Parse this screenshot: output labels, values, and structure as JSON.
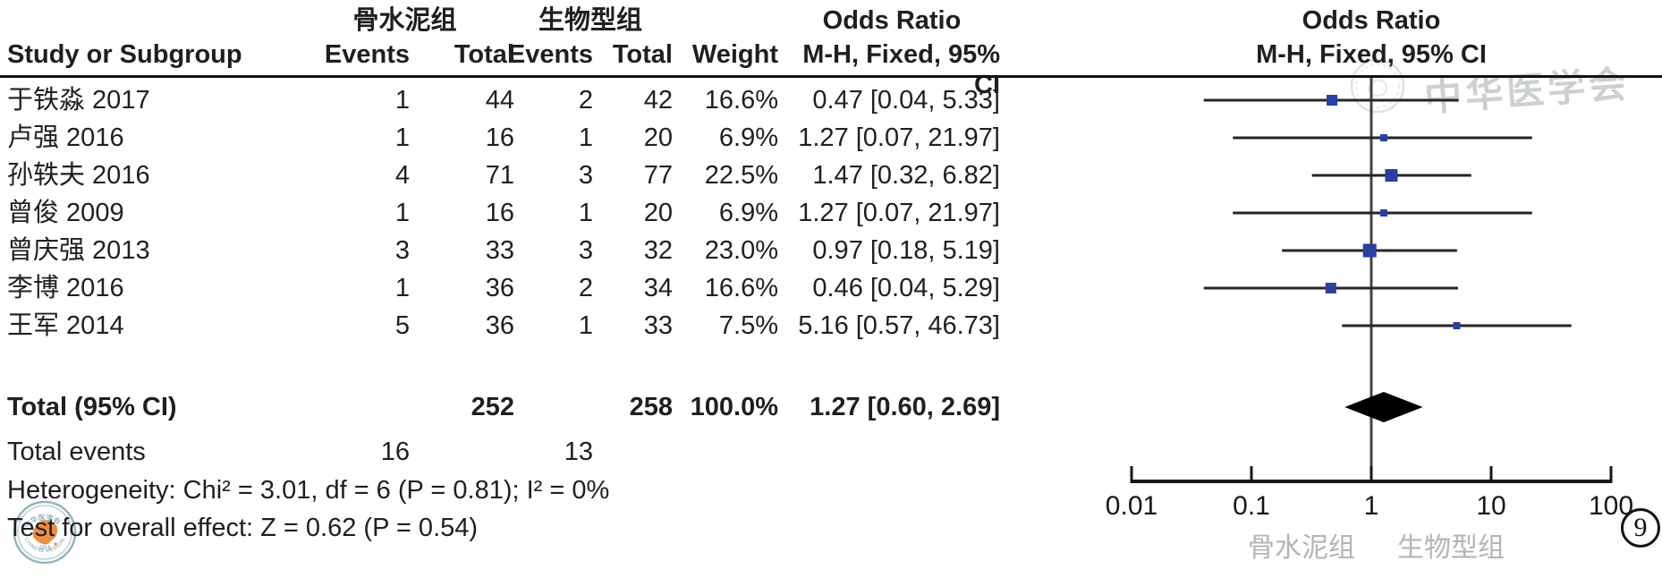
{
  "figure": {
    "number": "9"
  },
  "header": {
    "group1": "骨水泥组",
    "group2": "生物型组",
    "odds_ratio": "Odds Ratio",
    "study": "Study or Subgroup",
    "events": "Events",
    "total": "Total",
    "weight": "Weight",
    "mh": "M-H, Fixed, 95% CI"
  },
  "chart_data": {
    "type": "forest",
    "effect_measure": "Odds Ratio",
    "method": "M-H, Fixed, 95% CI",
    "x_scale": "log",
    "axis": {
      "ticks": [
        "0.01",
        "0.1",
        "1",
        "10",
        "100"
      ],
      "tick_values": [
        0.01,
        0.1,
        1,
        10,
        100
      ],
      "left_group_label": "骨水泥组",
      "right_group_label": "生物型组"
    },
    "studies": [
      {
        "study": "于铁淼 2017",
        "events1": "1",
        "total1": "44",
        "events2": "2",
        "total2": "42",
        "weight": "16.6%",
        "weight_pct": 16.6,
        "or": 0.47,
        "ci_low": 0.04,
        "ci_high": 5.33,
        "or_text": "0.47 [0.04, 5.33]"
      },
      {
        "study": "卢强 2016",
        "events1": "1",
        "total1": "16",
        "events2": "1",
        "total2": "20",
        "weight": "6.9%",
        "weight_pct": 6.9,
        "or": 1.27,
        "ci_low": 0.07,
        "ci_high": 21.97,
        "or_text": "1.27 [0.07, 21.97]"
      },
      {
        "study": "孙轶夫 2016",
        "events1": "4",
        "total1": "71",
        "events2": "3",
        "total2": "77",
        "weight": "22.5%",
        "weight_pct": 22.5,
        "or": 1.47,
        "ci_low": 0.32,
        "ci_high": 6.82,
        "or_text": "1.47 [0.32, 6.82]"
      },
      {
        "study": "曾俊 2009",
        "events1": "1",
        "total1": "16",
        "events2": "1",
        "total2": "20",
        "weight": "6.9%",
        "weight_pct": 6.9,
        "or": 1.27,
        "ci_low": 0.07,
        "ci_high": 21.97,
        "or_text": "1.27 [0.07, 21.97]"
      },
      {
        "study": "曾庆强 2013",
        "events1": "3",
        "total1": "33",
        "events2": "3",
        "total2": "32",
        "weight": "23.0%",
        "weight_pct": 23.0,
        "or": 0.97,
        "ci_low": 0.18,
        "ci_high": 5.19,
        "or_text": "0.97 [0.18, 5.19]"
      },
      {
        "study": "李博 2016",
        "events1": "1",
        "total1": "36",
        "events2": "2",
        "total2": "34",
        "weight": "16.6%",
        "weight_pct": 16.6,
        "or": 0.46,
        "ci_low": 0.04,
        "ci_high": 5.29,
        "or_text": "0.46 [0.04, 5.29]"
      },
      {
        "study": "王军 2014",
        "events1": "5",
        "total1": "36",
        "events2": "1",
        "total2": "33",
        "weight": "7.5%",
        "weight_pct": 7.5,
        "or": 5.16,
        "ci_low": 0.57,
        "ci_high": 46.73,
        "or_text": "5.16 [0.57, 46.73]"
      }
    ],
    "total": {
      "label": "Total (95% CI)",
      "total1": "252",
      "total2": "258",
      "weight": "100.0%",
      "or": 1.27,
      "ci_low": 0.6,
      "ci_high": 2.69,
      "or_text": "1.27 [0.60, 2.69]"
    },
    "total_events": {
      "label": "Total events",
      "events1": "16",
      "events2": "13"
    },
    "heterogeneity": "Heterogeneity: Chi² = 3.01, df = 6 (P = 0.81); I² = 0%",
    "overall_effect": "Test for overall effect: Z = 0.62 (P = 0.54)",
    "marker_color": "#2b3f9f",
    "diamond_color": "#000000",
    "line_color": "#262626"
  },
  "watermark": {
    "text": "中华医学会",
    "seal_top_text": "中华医学会",
    "seal_caption": "CHINESE MEDICAL ASSOCIATION",
    "seal_year": "1915"
  }
}
